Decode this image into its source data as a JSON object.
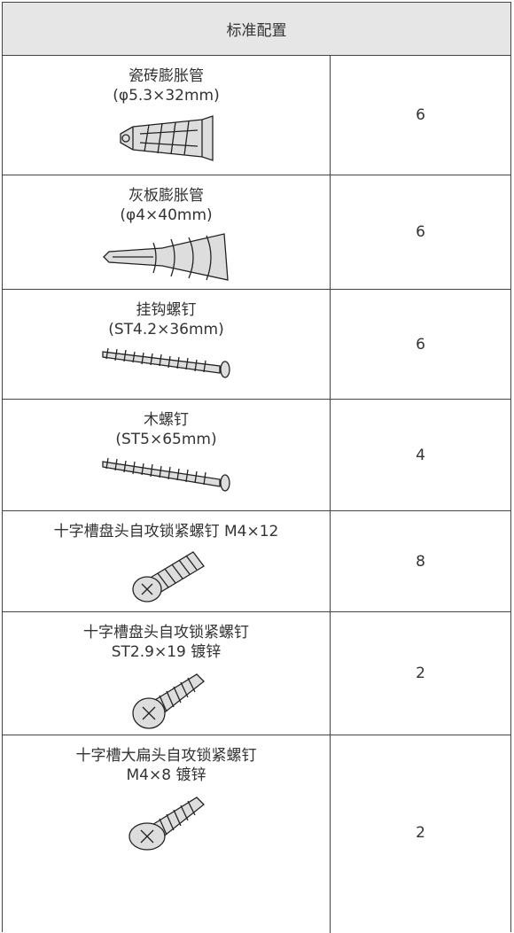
{
  "header": {
    "title": "标准配置"
  },
  "table": {
    "rows": [
      {
        "name": [
          "瓷砖膨胀管",
          "(φ5.3×32mm)"
        ],
        "quantity": 6
      },
      {
        "name": [
          "灰板膨胀管",
          "(φ4×40mm)"
        ],
        "quantity": 6
      },
      {
        "name": [
          "挂钩螺钉",
          "(ST4.2×36mm)"
        ],
        "quantity": 6
      },
      {
        "name": [
          "木螺钉",
          "(ST5×65mm)"
        ],
        "quantity": 4
      },
      {
        "name": [
          "十字槽盘头自攻锁紧螺钉 M4×12"
        ],
        "quantity": 8
      },
      {
        "name": [
          "十字槽盘头自攻锁紧螺钉",
          "ST2.9×19 镀锌"
        ],
        "quantity": 2
      },
      {
        "name": [
          "十字槽大扁头自攻锁紧螺钉",
          "M4×8 镀锌"
        ],
        "quantity": 2
      }
    ]
  }
}
